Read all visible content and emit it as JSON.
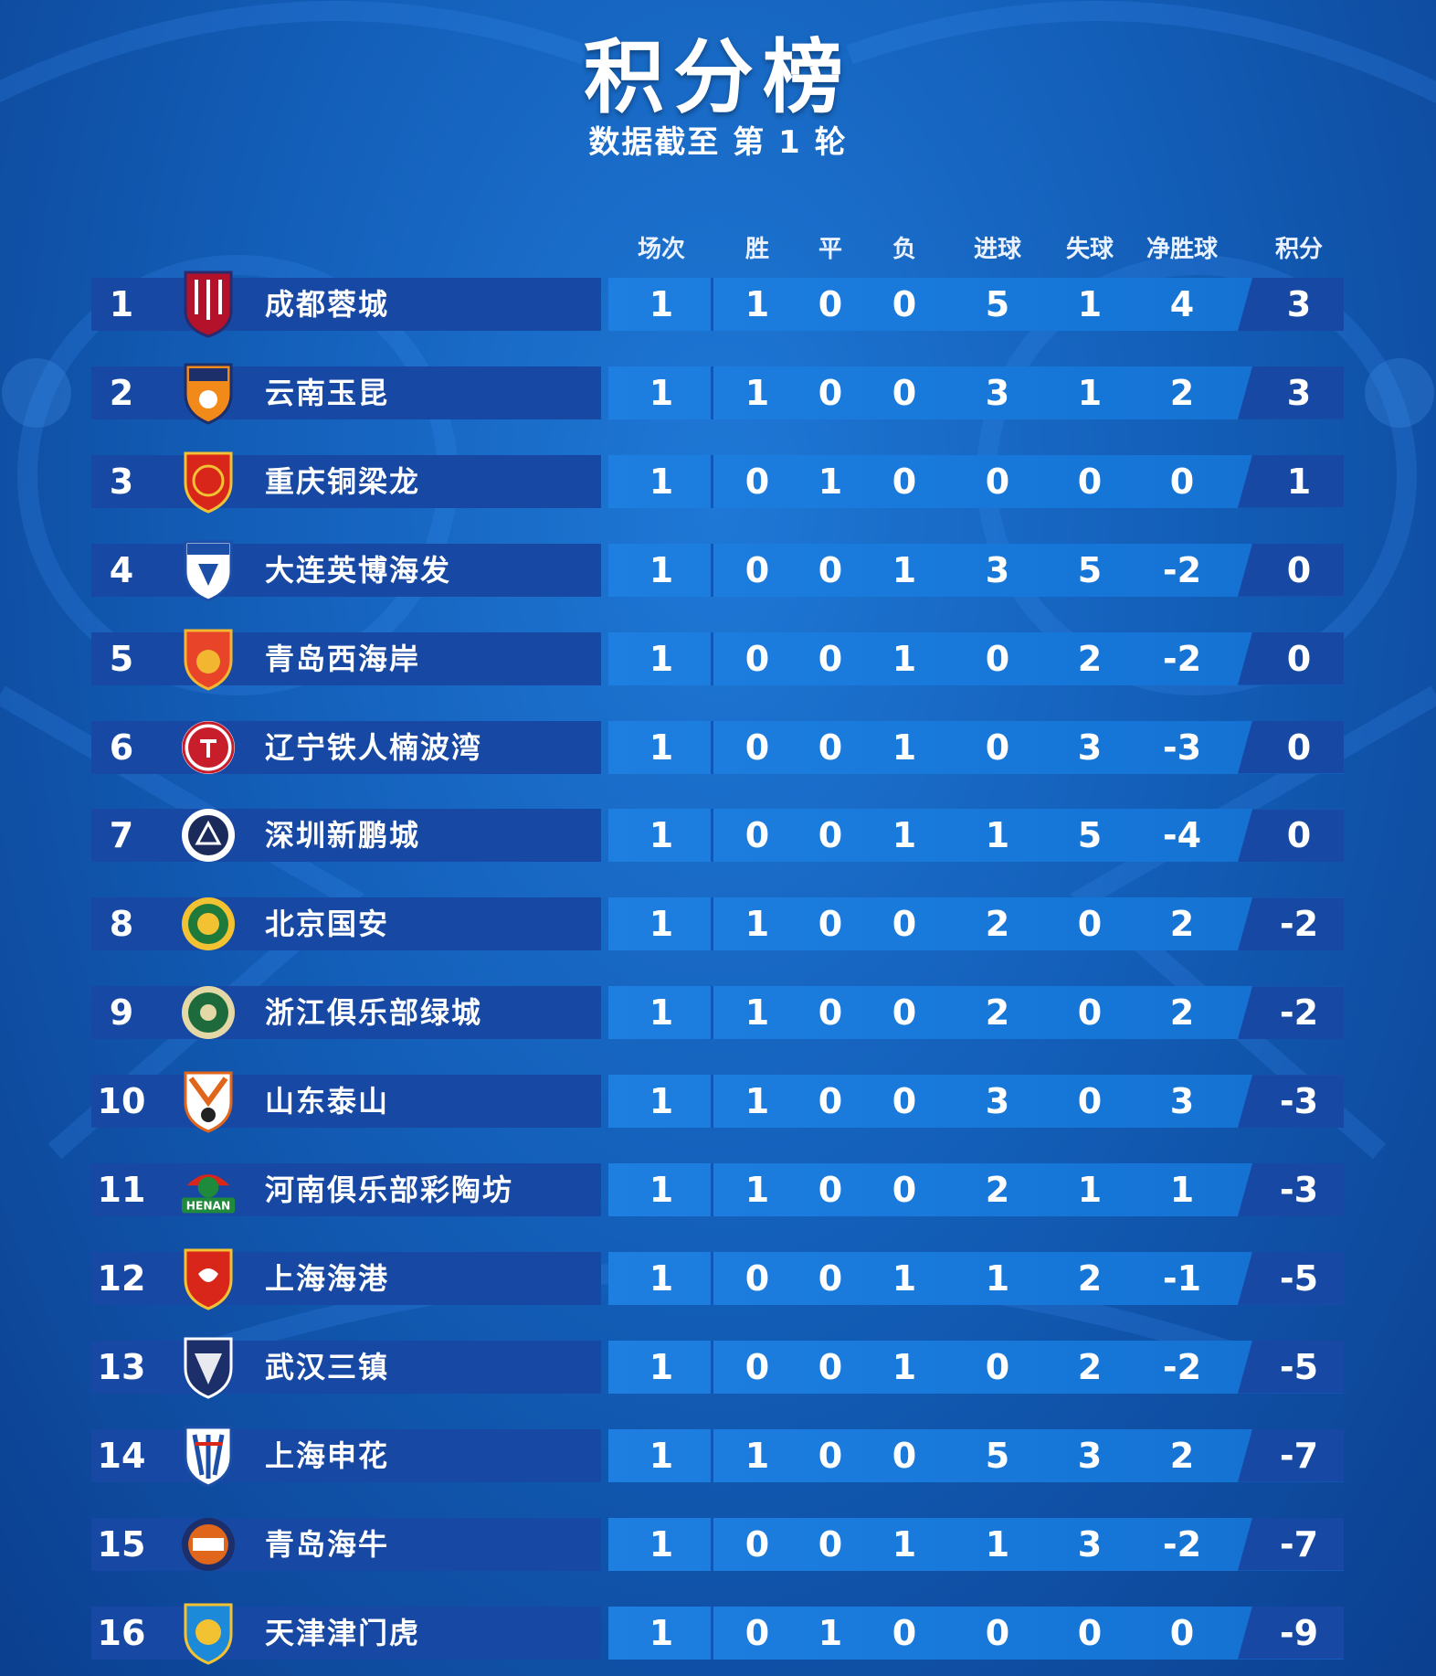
{
  "title": "积分榜",
  "subtitle": "数据截至 第 1 轮",
  "headers": [
    "场次",
    "胜",
    "平",
    "负",
    "进球",
    "失球",
    "净胜球",
    "积分"
  ],
  "rows": [
    {
      "rank": "1",
      "team": "成都蓉城",
      "logo": "chengdu-logo",
      "stats": [
        "1",
        "1",
        "0",
        "0",
        "5",
        "1",
        "4",
        "3"
      ]
    },
    {
      "rank": "2",
      "team": "云南玉昆",
      "logo": "yunnan-logo",
      "stats": [
        "1",
        "1",
        "0",
        "0",
        "3",
        "1",
        "2",
        "3"
      ]
    },
    {
      "rank": "3",
      "team": "重庆铜梁龙",
      "logo": "chongqing-logo",
      "stats": [
        "1",
        "0",
        "1",
        "0",
        "0",
        "0",
        "0",
        "1"
      ]
    },
    {
      "rank": "4",
      "team": "大连英博海发",
      "logo": "dalian-logo",
      "stats": [
        "1",
        "0",
        "0",
        "1",
        "3",
        "5",
        "-2",
        "0"
      ]
    },
    {
      "rank": "5",
      "team": "青岛西海岸",
      "logo": "qingdao-west-coast-logo",
      "stats": [
        "1",
        "0",
        "0",
        "1",
        "0",
        "2",
        "-2",
        "0"
      ]
    },
    {
      "rank": "6",
      "team": "辽宁铁人楠波湾",
      "logo": "liaoning-logo",
      "stats": [
        "1",
        "0",
        "0",
        "1",
        "0",
        "3",
        "-3",
        "0"
      ]
    },
    {
      "rank": "7",
      "team": "深圳新鹏城",
      "logo": "shenzhen-logo",
      "stats": [
        "1",
        "0",
        "0",
        "1",
        "1",
        "5",
        "-4",
        "0"
      ]
    },
    {
      "rank": "8",
      "team": "北京国安",
      "logo": "beijing-logo",
      "stats": [
        "1",
        "1",
        "0",
        "0",
        "2",
        "0",
        "2",
        "-2"
      ]
    },
    {
      "rank": "9",
      "team": "浙江俱乐部绿城",
      "logo": "zhejiang-logo",
      "stats": [
        "1",
        "1",
        "0",
        "0",
        "2",
        "0",
        "2",
        "-2"
      ]
    },
    {
      "rank": "10",
      "team": "山东泰山",
      "logo": "shandong-logo",
      "stats": [
        "1",
        "1",
        "0",
        "0",
        "3",
        "0",
        "3",
        "-3"
      ]
    },
    {
      "rank": "11",
      "team": "河南俱乐部彩陶坊",
      "logo": "henan-logo",
      "logo_text": "HENAN",
      "stats": [
        "1",
        "1",
        "0",
        "0",
        "2",
        "1",
        "1",
        "-3"
      ]
    },
    {
      "rank": "12",
      "team": "上海海港",
      "logo": "shanghai-port-logo",
      "stats": [
        "1",
        "0",
        "0",
        "1",
        "1",
        "2",
        "-1",
        "-5"
      ]
    },
    {
      "rank": "13",
      "team": "武汉三镇",
      "logo": "wuhan-logo",
      "stats": [
        "1",
        "0",
        "0",
        "1",
        "0",
        "2",
        "-2",
        "-5"
      ]
    },
    {
      "rank": "14",
      "team": "上海申花",
      "logo": "shenhua-logo",
      "stats": [
        "1",
        "1",
        "0",
        "0",
        "5",
        "3",
        "2",
        "-7"
      ]
    },
    {
      "rank": "15",
      "team": "青岛海牛",
      "logo": "qingdao-hainiu-logo",
      "stats": [
        "1",
        "0",
        "0",
        "1",
        "1",
        "3",
        "-2",
        "-7"
      ]
    },
    {
      "rank": "16",
      "team": "天津津门虎",
      "logo": "tianjin-logo",
      "stats": [
        "1",
        "0",
        "1",
        "0",
        "0",
        "0",
        "0",
        "-9"
      ]
    }
  ]
}
